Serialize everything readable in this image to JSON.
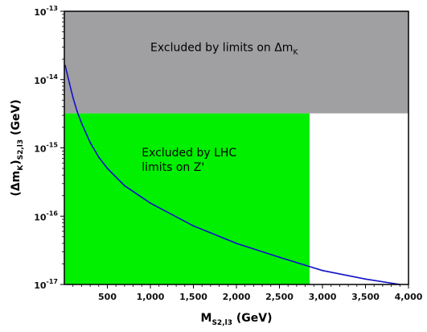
{
  "chart_data": {
    "type": "line",
    "title": "",
    "xlabel": "M",
    "xlabel_sub": "S2,l3",
    "xlabel_unit": " (GeV)",
    "ylabel": "(Δm",
    "ylabel_sub1": "K",
    "ylabel_mid": ")",
    "ylabel_sub2": "S2,l3",
    "ylabel_unit": " (GeV)",
    "xlim": [
      0,
      4000
    ],
    "ylim": [
      1e-17,
      1e-13
    ],
    "yscale": "log",
    "grid": false,
    "x_ticks": [
      500,
      1000,
      1500,
      2000,
      2500,
      3000,
      3500,
      4000
    ],
    "x_tick_labels": [
      "500",
      "1,000",
      "1,500",
      "2,000",
      "2,500",
      "3,000",
      "3,500",
      "4,000"
    ],
    "y_ticks": [
      {
        "value": 1e-17,
        "base": "10",
        "exp": "-17"
      },
      {
        "value": 1e-16,
        "base": "10",
        "exp": "-16"
      },
      {
        "value": 1e-15,
        "base": "10",
        "exp": "-15"
      },
      {
        "value": 1e-14,
        "base": "10",
        "exp": "-14"
      },
      {
        "value": 1e-13,
        "base": "10",
        "exp": "-13"
      }
    ],
    "series": [
      {
        "color": "#1010c8",
        "x": [
          10,
          60,
          100,
          150,
          200,
          300,
          400,
          500,
          700,
          1000,
          1500,
          2000,
          2500,
          3000,
          3500,
          3900
        ],
        "y": [
          1.6e-14,
          8.8e-15,
          5.5e-15,
          3.4e-15,
          2.3e-15,
          1.2e-15,
          7.3e-16,
          5e-16,
          2.8e-16,
          1.55e-16,
          7.2e-17,
          4e-17,
          2.5e-17,
          1.6e-17,
          1.2e-17,
          1e-17
        ]
      }
    ],
    "regions": [
      {
        "label": "Excluded by limits on Δm",
        "label_sub": "K",
        "color": "#a09fa2",
        "x_range": [
          0,
          4000
        ],
        "y_range": [
          3.2e-15,
          1e-13
        ]
      },
      {
        "label_lines": [
          "Excluded by LHC",
          "limits on Z'"
        ],
        "color": "#00f000",
        "x_range": [
          0,
          2850
        ],
        "y_range": [
          1e-17,
          3.2e-15
        ]
      }
    ]
  }
}
